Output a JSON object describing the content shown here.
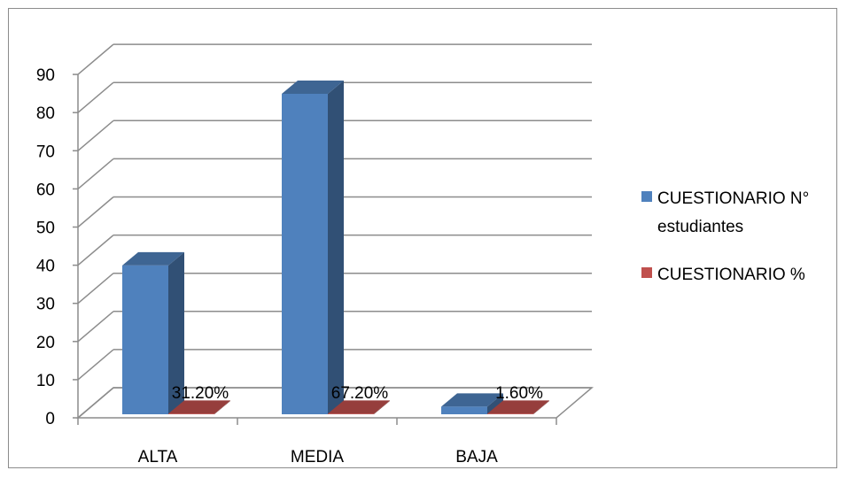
{
  "chart_data": {
    "type": "bar",
    "categories": [
      "ALTA",
      "MEDIA",
      "BAJA"
    ],
    "series": [
      {
        "name": "CUESTIONARIO N° estudiantes",
        "values": [
          39,
          84,
          2
        ],
        "color": "#4f81bd"
      },
      {
        "name": "CUESTIONARIO %",
        "values": [
          0.312,
          0.672,
          0.016
        ],
        "color": "#c0504d"
      }
    ],
    "data_labels": [
      "31.20%",
      "67.20%",
      "1.60%"
    ],
    "y_ticks": [
      "0",
      "10",
      "20",
      "30",
      "40",
      "50",
      "60",
      "70",
      "80",
      "90"
    ],
    "ylim": [
      0,
      90
    ],
    "grid": true,
    "legend_position": "right",
    "style": "3d-clustered-column"
  },
  "legend": {
    "series1_line1": "CUESTIONARIO N°",
    "series1_line2": "estudiantes",
    "series2": "CUESTIONARIO %"
  }
}
